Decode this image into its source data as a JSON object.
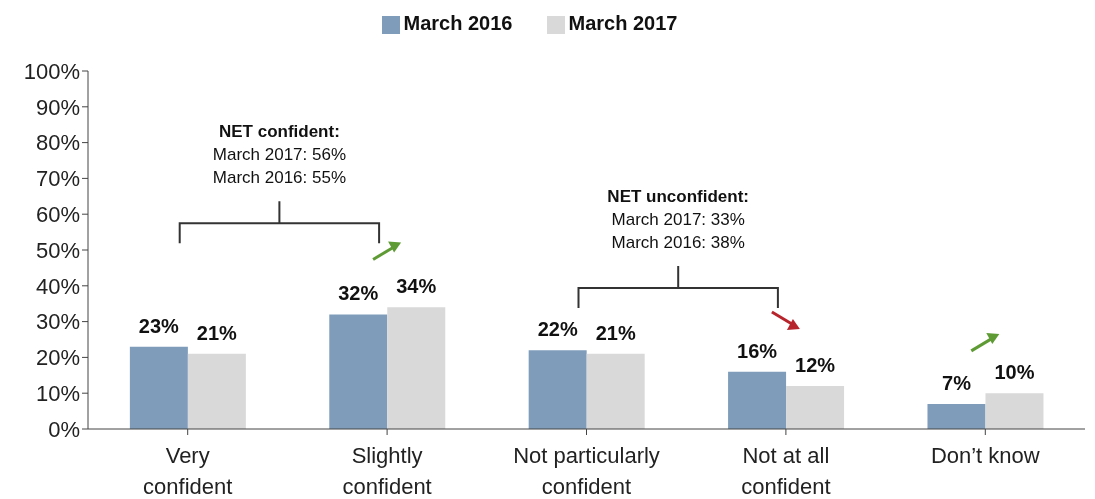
{
  "chart_data": {
    "type": "bar",
    "categories": [
      "Very confident",
      "Slightly confident",
      "Not particularly confident",
      "Not at all confident",
      "Don’t know"
    ],
    "series": [
      {
        "name": "March 2016",
        "color": "#7f9dba",
        "values": [
          23,
          32,
          22,
          16,
          7
        ],
        "value_labels": [
          "23%",
          "32%",
          "22%",
          "16%",
          "7%"
        ]
      },
      {
        "name": "March 2017",
        "color": "#d9d9d9",
        "values": [
          21,
          34,
          21,
          12,
          10
        ],
        "value_labels": [
          "21%",
          "34%",
          "21%",
          "12%",
          "10%"
        ]
      }
    ],
    "ylim": [
      0,
      100
    ],
    "yticks": [
      {
        "value": 0,
        "label": "0%"
      },
      {
        "value": 10,
        "label": "10%"
      },
      {
        "value": 20,
        "label": "20%"
      },
      {
        "value": 30,
        "label": "30%"
      },
      {
        "value": 40,
        "label": "40%"
      },
      {
        "value": 50,
        "label": "50%"
      },
      {
        "value": 60,
        "label": "60%"
      },
      {
        "value": 70,
        "label": "70%"
      },
      {
        "value": 80,
        "label": "80%"
      },
      {
        "value": 90,
        "label": "90%"
      },
      {
        "value": 100,
        "label": "100%"
      }
    ],
    "grid": false,
    "legend": "top",
    "annotations": [
      "NET confident:\nMarch 2017: 56%\nMarch 2016: 55%",
      "NET unconfident:\nMarch 2017: 33%\nMarch 2016: 38%"
    ]
  }
}
